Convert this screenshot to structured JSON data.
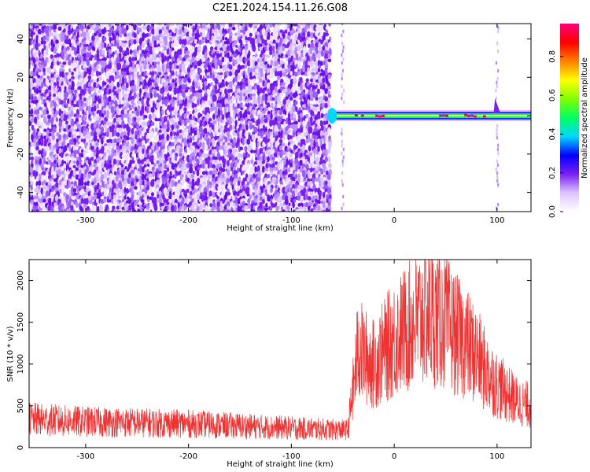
{
  "title": "C2E1.2024.154.11.26.G08",
  "chart_data": [
    {
      "type": "heatmap",
      "xlabel": "Height of straight line (km)",
      "ylabel": "Frequency (Hz)",
      "xlim": [
        -355,
        133
      ],
      "ylim": [
        -50,
        48
      ],
      "x_ticks": [
        -300,
        -200,
        -100,
        0,
        100
      ],
      "y_ticks": [
        -40,
        -20,
        0,
        20,
        40
      ],
      "x_tick_labels": [
        "-300",
        "-200",
        "-100",
        "0",
        "100"
      ],
      "y_tick_labels": [
        "-40",
        "-20",
        "0",
        "20",
        "40"
      ],
      "noise_region": [
        -355,
        -63
      ],
      "noise_color": "#7a1ff0",
      "signal_band": {
        "x_start": -65,
        "x_end": 133,
        "center_hz": 0,
        "segments": [
          {
            "x": [
              -40,
              -30
            ],
            "amplitude": 1.0
          },
          {
            "x": [
              -20,
              -5
            ],
            "amplitude": 1.0
          },
          {
            "x": [
              45,
              100
            ],
            "amplitude": 1.0
          },
          {
            "x": [
              -60,
              130
            ],
            "amplitude": 0.55
          }
        ]
      },
      "vertical_streaks_x": [
        -50,
        100
      ],
      "colorbar": {
        "label": "Normalized spectral amplitude",
        "ticks": [
          0.0,
          0.2,
          0.4,
          0.6,
          0.8
        ],
        "tick_labels": [
          "0.0",
          "0.2",
          "0.4",
          "0.6",
          "0.8"
        ],
        "colors": [
          "#ffffff",
          "#dcc4ff",
          "#7a1ff0",
          "#0000ff",
          "#00d8ff",
          "#00ff60",
          "#80ff00",
          "#ffff00",
          "#ff8000",
          "#ff0000",
          "#ff007a"
        ]
      },
      "grid": false
    },
    {
      "type": "line",
      "xlabel": "Height of straight line (km)",
      "ylabel": "SNR (10 * v/v)",
      "xlim": [
        -355,
        133
      ],
      "ylim": [
        0,
        2250
      ],
      "x_ticks": [
        -300,
        -200,
        -100,
        0,
        100
      ],
      "y_ticks": [
        0,
        500,
        1000,
        1500,
        2000
      ],
      "x_tick_labels": [
        "-300",
        "-200",
        "-100",
        "0",
        "100"
      ],
      "y_tick_labels": [
        "0",
        "500",
        "1000",
        "1500",
        "2000"
      ],
      "color": "#ee3333",
      "series": [
        {
          "x": [
            -355,
            -340,
            -320,
            -300,
            -280,
            -260,
            -240,
            -220,
            -200,
            -180,
            -160,
            -140,
            -120,
            -100,
            -80,
            -60,
            -45,
            -40,
            -35,
            -30,
            -20,
            -10,
            0,
            10,
            20,
            30,
            40,
            50,
            60,
            70,
            80,
            90,
            100,
            110,
            120,
            133
          ],
          "values": [
            340,
            330,
            320,
            310,
            305,
            300,
            295,
            290,
            285,
            275,
            265,
            255,
            245,
            235,
            225,
            215,
            210,
            700,
            1200,
            1100,
            1000,
            1150,
            1300,
            1400,
            1500,
            1600,
            1550,
            1500,
            1350,
            1250,
            1100,
            900,
            750,
            650,
            550,
            500
          ]
        }
      ],
      "grid": false
    }
  ]
}
